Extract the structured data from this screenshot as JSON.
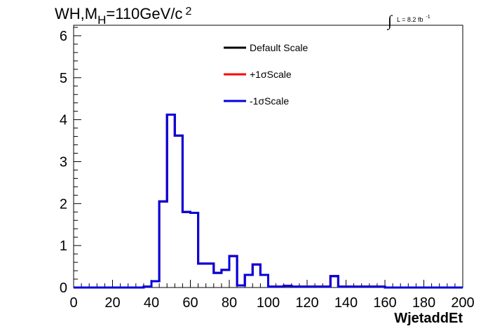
{
  "chart_data": {
    "type": "line",
    "title": {
      "prefix": "WH,M",
      "subscript": "H",
      "middle": "=110GeV/c",
      "superscript": "2"
    },
    "luminosity": {
      "integral": "∫",
      "text": "L = 8.2 fb",
      "superscript": "-1"
    },
    "xlabel": "WjetaddEt",
    "ylabel": "",
    "xlim": [
      0,
      200
    ],
    "ylim": [
      0,
      6.25
    ],
    "x_ticks": [
      "0",
      "20",
      "40",
      "60",
      "80",
      "100",
      "120",
      "140",
      "160",
      "180",
      "200"
    ],
    "y_ticks": [
      "0",
      "1",
      "2",
      "3",
      "4",
      "5",
      "6"
    ],
    "bin_edges": [
      0,
      4,
      8,
      12,
      16,
      20,
      24,
      28,
      32,
      36,
      40,
      44,
      48,
      52,
      56,
      60,
      64,
      68,
      72,
      76,
      80,
      84,
      88,
      92,
      96,
      100,
      104,
      108,
      112,
      116,
      120,
      124,
      128,
      132,
      136,
      140,
      144,
      148,
      152,
      156,
      160,
      164,
      168,
      172,
      176,
      180,
      184,
      188,
      192,
      196,
      200
    ],
    "series": [
      {
        "name": "Default Scale",
        "color": "#000000",
        "values": [
          0,
          0,
          0,
          0,
          0,
          0,
          0,
          0,
          0,
          0.02,
          0.15,
          2.05,
          4.12,
          3.62,
          1.8,
          1.78,
          0.57,
          0.57,
          0.35,
          0.42,
          0.75,
          0.05,
          0.3,
          0.55,
          0.3,
          0.02,
          0.02,
          0.04,
          0.02,
          0.02,
          0.02,
          0.02,
          0.02,
          0.27,
          0.02,
          0.02,
          0.02,
          0.02,
          0.02,
          0.02,
          0,
          0,
          0,
          0,
          0,
          0,
          0,
          0,
          0,
          0
        ]
      },
      {
        "name": "+1σScale",
        "color": "#ff0000",
        "values": [
          0,
          0,
          0,
          0,
          0,
          0,
          0,
          0,
          0,
          0.02,
          0.15,
          2.05,
          4.12,
          3.62,
          1.8,
          1.78,
          0.57,
          0.57,
          0.35,
          0.42,
          0.75,
          0.05,
          0.3,
          0.55,
          0.3,
          0.02,
          0.02,
          0.04,
          0.02,
          0.02,
          0.02,
          0.02,
          0.02,
          0.27,
          0.02,
          0.02,
          0.02,
          0.02,
          0.02,
          0.02,
          0,
          0,
          0,
          0,
          0,
          0,
          0,
          0,
          0,
          0
        ]
      },
      {
        "name": "-1σScale",
        "color": "#0000e0",
        "values": [
          0,
          0,
          0,
          0,
          0,
          0,
          0,
          0,
          0,
          0.02,
          0.15,
          2.05,
          4.12,
          3.62,
          1.8,
          1.78,
          0.57,
          0.57,
          0.35,
          0.42,
          0.75,
          0.05,
          0.3,
          0.55,
          0.3,
          0.02,
          0.02,
          0.04,
          0.02,
          0.02,
          0.02,
          0.02,
          0.02,
          0.27,
          0.02,
          0.02,
          0.02,
          0.02,
          0.02,
          0.02,
          0,
          0,
          0,
          0,
          0,
          0,
          0,
          0,
          0,
          0
        ]
      }
    ],
    "legend_position": "top-center",
    "grid": false
  }
}
